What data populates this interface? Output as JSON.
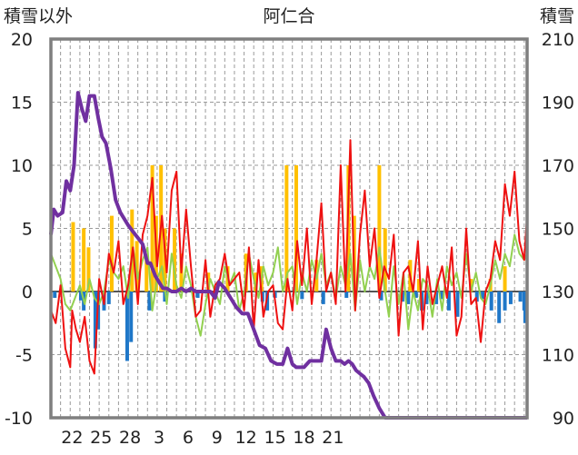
{
  "chart_data": {
    "type": "line",
    "title": "阿仁合",
    "ylabel": "積雪以外",
    "y2label": "積雪",
    "ylim": [
      -10,
      20
    ],
    "y2lim": [
      90,
      210
    ],
    "yticks": [
      "20",
      "15",
      "10",
      "5",
      "0",
      "-5",
      "-10"
    ],
    "y2ticks": [
      "210",
      "190",
      "170",
      "150",
      "130",
      "110",
      "90"
    ],
    "xticks": [
      "22",
      "25",
      "28",
      "3",
      "6",
      "9",
      "12",
      "15",
      "18",
      "21"
    ],
    "grid": true,
    "legend": "none",
    "colors": {
      "frame": "#7f7f7f",
      "red": "#ee1111",
      "green": "#92d050",
      "purple": "#7030a0",
      "orange": "#ffc000",
      "blue": "#1f77c8"
    },
    "series": [
      {
        "color_key": "purple",
        "axis": "right",
        "x": [
          0,
          0.3,
          0.7,
          1.2,
          1.6,
          2.0,
          2.4,
          2.8,
          3.2,
          3.6,
          4.0,
          4.5,
          4.9,
          5.3,
          5.7,
          6.2,
          6.7,
          7.2,
          7.6,
          8.0,
          8.5,
          9.0,
          9.5,
          10.0,
          10.3,
          10.8,
          11.2,
          11.6,
          12.0,
          12.5,
          13.0,
          13.5,
          14.0,
          14.5,
          15.0,
          15.5,
          16.0,
          16.5,
          17.0,
          17.4,
          18.0,
          18.6,
          19.2,
          19.8,
          20.4,
          21.0,
          21.6,
          22.2,
          22.8,
          23.4,
          24.0,
          24.5,
          25.0,
          25.4,
          25.8,
          26.2,
          26.8,
          27.4,
          28.0,
          28.5,
          29.0,
          29.5,
          30.0,
          30.4,
          30.8,
          31.2,
          31.6,
          32.0,
          32.4,
          32.9,
          33.4,
          34.0,
          34.6,
          35.2,
          35.8,
          36.4,
          37.0,
          37.6,
          38.2,
          38.8,
          39.4,
          40.0,
          40.6,
          41.2,
          41.8,
          42.4,
          43.0,
          43.6,
          44.2,
          44.8,
          45.4,
          46.0,
          46.6,
          47.2,
          47.6,
          48.0,
          48.4,
          48.7,
          49.0,
          49.3
        ],
        "y": [
          148,
          156,
          154,
          155,
          165,
          162,
          170,
          193,
          188,
          184,
          192,
          192,
          185,
          179,
          177,
          169,
          159,
          155,
          153,
          151,
          149,
          147,
          145,
          139,
          139,
          135,
          133,
          131,
          131,
          130,
          130,
          131,
          130,
          131,
          130,
          130,
          130,
          130,
          128,
          133,
          131,
          128,
          125,
          123,
          123,
          118,
          113,
          112,
          108,
          107,
          107,
          112,
          107,
          106,
          106,
          106,
          108,
          108,
          108,
          118,
          112,
          108,
          108,
          107,
          108,
          107,
          105,
          104,
          103,
          101,
          97,
          93,
          90,
          90,
          90,
          90,
          90,
          90,
          90,
          90,
          90,
          90,
          90,
          90,
          90,
          90,
          90,
          90,
          90,
          90,
          90,
          90,
          90,
          90,
          90,
          90,
          90,
          90,
          90,
          90
        ]
      },
      {
        "color_key": "red",
        "axis": "left",
        "x": [
          0,
          0.5,
          1.0,
          1.5,
          2.0,
          2.2,
          2.6,
          3.0,
          3.5,
          4.0,
          4.5,
          5.0,
          5.5,
          6.0,
          6.5,
          7.0,
          7.5,
          8.0,
          8.5,
          9.0,
          9.5,
          10.0,
          10.5,
          11.0,
          11.5,
          12.0,
          12.5,
          13.0,
          13.5,
          14.0,
          14.5,
          15.0,
          15.5,
          16.0,
          16.5,
          17.0,
          17.5,
          18.0,
          18.5,
          19.0,
          19.5,
          20.0,
          20.5,
          21.0,
          21.5,
          22.0,
          22.5,
          23.0,
          23.5,
          24.0,
          24.5,
          25.0,
          25.5,
          26.0,
          26.5,
          27.0,
          27.5,
          28.0,
          28.5,
          29.0,
          29.5,
          30.0,
          30.5,
          31.0,
          31.5,
          32.0,
          32.5,
          33.0,
          33.5,
          34.0,
          34.5,
          35.0,
          35.5,
          36.0,
          36.5,
          37.0,
          37.5,
          38.0,
          38.5,
          39.0,
          39.5,
          40.0,
          40.5,
          41.0,
          41.5,
          42.0,
          42.5,
          43.0,
          43.5,
          44.0,
          44.5,
          45.0,
          45.5,
          46.0,
          46.5,
          47.0,
          47.5,
          48.0,
          48.5,
          49.0,
          49.3
        ],
        "y": [
          -1.5,
          -2.5,
          0.5,
          -4.5,
          -6.0,
          -1.5,
          -3.0,
          -4.0,
          -2.0,
          -5.5,
          -6.5,
          1.0,
          -1.0,
          3.0,
          1.5,
          4.0,
          -1.0,
          0.5,
          3.5,
          -1.0,
          4.5,
          6.0,
          9.0,
          2.0,
          6.0,
          1.5,
          8.0,
          9.5,
          1.5,
          6.5,
          2.0,
          -2.0,
          -1.5,
          2.5,
          -2.0,
          0.5,
          1.0,
          3.0,
          0.5,
          1.0,
          1.5,
          -1.5,
          3.5,
          -3.0,
          2.5,
          -2.0,
          0.0,
          0.5,
          -2.5,
          -3.0,
          1.0,
          -1.5,
          4.0,
          0.5,
          5.0,
          -1.0,
          2.5,
          7.0,
          0.0,
          1.5,
          -1.0,
          10.0,
          0.0,
          12.0,
          -1.5,
          4.5,
          8.0,
          2.0,
          5.0,
          -0.5,
          2.0,
          1.0,
          4.5,
          -3.5,
          1.5,
          2.0,
          0.0,
          4.0,
          -3.0,
          2.0,
          -1.0,
          0.5,
          2.0,
          -0.5,
          3.5,
          -3.5,
          -2.0,
          5.0,
          -1.0,
          -0.5,
          -4.0,
          0.0,
          1.0,
          4.0,
          2.5,
          8.5,
          6.0,
          9.5,
          4.0,
          2.5,
          6.0
        ]
      },
      {
        "color_key": "green",
        "axis": "left",
        "x": [
          0,
          0.5,
          1.0,
          1.5,
          2.0,
          2.5,
          3.0,
          3.5,
          4.0,
          4.5,
          5.0,
          5.5,
          6.0,
          6.5,
          7.0,
          7.5,
          8.0,
          8.5,
          9.0,
          9.5,
          10.0,
          10.5,
          11.0,
          11.5,
          12.0,
          12.5,
          13.0,
          13.5,
          14.0,
          14.5,
          15.0,
          15.5,
          16.0,
          16.5,
          17.0,
          17.5,
          18.0,
          18.5,
          19.0,
          19.5,
          20.0,
          20.5,
          21.0,
          21.5,
          22.0,
          22.5,
          23.0,
          23.5,
          24.0,
          24.5,
          25.0,
          25.5,
          26.0,
          26.5,
          27.0,
          27.5,
          28.0,
          28.5,
          29.0,
          29.5,
          30.0,
          30.5,
          31.0,
          31.5,
          32.0,
          32.5,
          33.0,
          33.5,
          34.0,
          34.5,
          35.0,
          35.5,
          36.0,
          36.5,
          37.0,
          37.5,
          38.0,
          38.5,
          39.0,
          39.5,
          40.0,
          40.5,
          41.0,
          41.5,
          42.0,
          42.5,
          43.0,
          43.5,
          44.0,
          44.5,
          45.0,
          45.5,
          46.0,
          46.5,
          47.0,
          47.5,
          48.0,
          48.5,
          49.0,
          49.3
        ],
        "y": [
          3.0,
          2.0,
          1.0,
          -1.0,
          -1.5,
          -0.5,
          0.5,
          -1.0,
          1.0,
          -0.5,
          -1.0,
          0.0,
          2.5,
          1.5,
          1.0,
          2.0,
          -0.5,
          3.5,
          1.0,
          2.5,
          3.5,
          -1.5,
          1.0,
          2.0,
          -1.0,
          3.0,
          0.5,
          -0.5,
          2.0,
          0.5,
          -2.0,
          -3.5,
          -1.0,
          1.0,
          0.0,
          -1.0,
          2.0,
          0.5,
          1.5,
          -1.5,
          0.0,
          3.0,
          1.0,
          -0.5,
          2.0,
          0.5,
          1.5,
          3.5,
          0.0,
          1.5,
          2.0,
          -1.0,
          1.5,
          0.0,
          2.5,
          1.0,
          3.0,
          0.5,
          1.5,
          -0.5,
          2.0,
          0.5,
          3.0,
          -1.5,
          2.5,
          0.0,
          2.0,
          1.0,
          3.5,
          0.5,
          -2.0,
          2.0,
          -1.0,
          1.5,
          -3.0,
          0.0,
          -1.5,
          1.0,
          0.5,
          -2.0,
          1.0,
          -1.5,
          2.0,
          0.5,
          1.5,
          -0.5,
          3.0,
          0.0,
          1.5,
          -0.5,
          -1.0,
          0.5,
          2.5,
          1.0,
          3.0,
          2.0,
          4.5,
          3.0,
          2.5,
          3.0
        ]
      }
    ],
    "bars_orange": {
      "x": [
        2.3,
        3.4,
        3.9,
        6.3,
        8.4,
        8.9,
        9.9,
        10.5,
        10.9,
        11.4,
        11.8,
        12.8,
        13.5,
        16.3,
        18.3,
        20.2,
        21.2,
        21.8,
        24.4,
        25.4,
        27.5,
        30.8,
        31.4,
        34.0,
        34.6,
        37.2,
        38.1,
        43.5,
        45.5,
        47.0
      ],
      "y": [
        5.5,
        5.0,
        3.5,
        6.0,
        6.5,
        4.0,
        3.0,
        10.0,
        6.0,
        10.0,
        5.0,
        5.0,
        3.0,
        1.5,
        2.0,
        3.0,
        1.5,
        2.0,
        10.0,
        10.0,
        2.5,
        10.0,
        6.0,
        10.0,
        5.0,
        2.5,
        1.0,
        1.0,
        1.0,
        2.0
      ]
    },
    "bars_blue": {
      "x": [
        0.4,
        3.1,
        3.4,
        4.6,
        4.9,
        5.5,
        6.0,
        7.9,
        8.3,
        10.2,
        11.8,
        15.2,
        21.9,
        22.4,
        23.2,
        26.0,
        28.2,
        30.6,
        34.2,
        36.4,
        37.0,
        37.8,
        38.4,
        38.9,
        39.9,
        40.4,
        41.2,
        42.1,
        44.1,
        44.7,
        45.6,
        46.4,
        47.0,
        47.6,
        48.6,
        49.0,
        49.1
      ],
      "y": [
        -0.5,
        -0.7,
        -1.5,
        -4.5,
        -3.0,
        -1.5,
        -1.0,
        -5.5,
        -4.0,
        -1.5,
        -0.8,
        -0.5,
        -0.8,
        -1.5,
        -0.5,
        -0.6,
        -1.0,
        -0.5,
        -0.7,
        -0.8,
        -1.0,
        -0.5,
        -1.5,
        -1.0,
        -1.0,
        -0.6,
        -1.5,
        -2.0,
        -0.8,
        -0.6,
        -1.5,
        -2.5,
        -1.5,
        -1.0,
        -0.8,
        -1.5,
        -2.5
      ]
    },
    "x_tick_positions": [
      2.2,
      5.2,
      8.2,
      11.2,
      14.2,
      17.2,
      20.2,
      23.2,
      26.2,
      29.2
    ]
  }
}
